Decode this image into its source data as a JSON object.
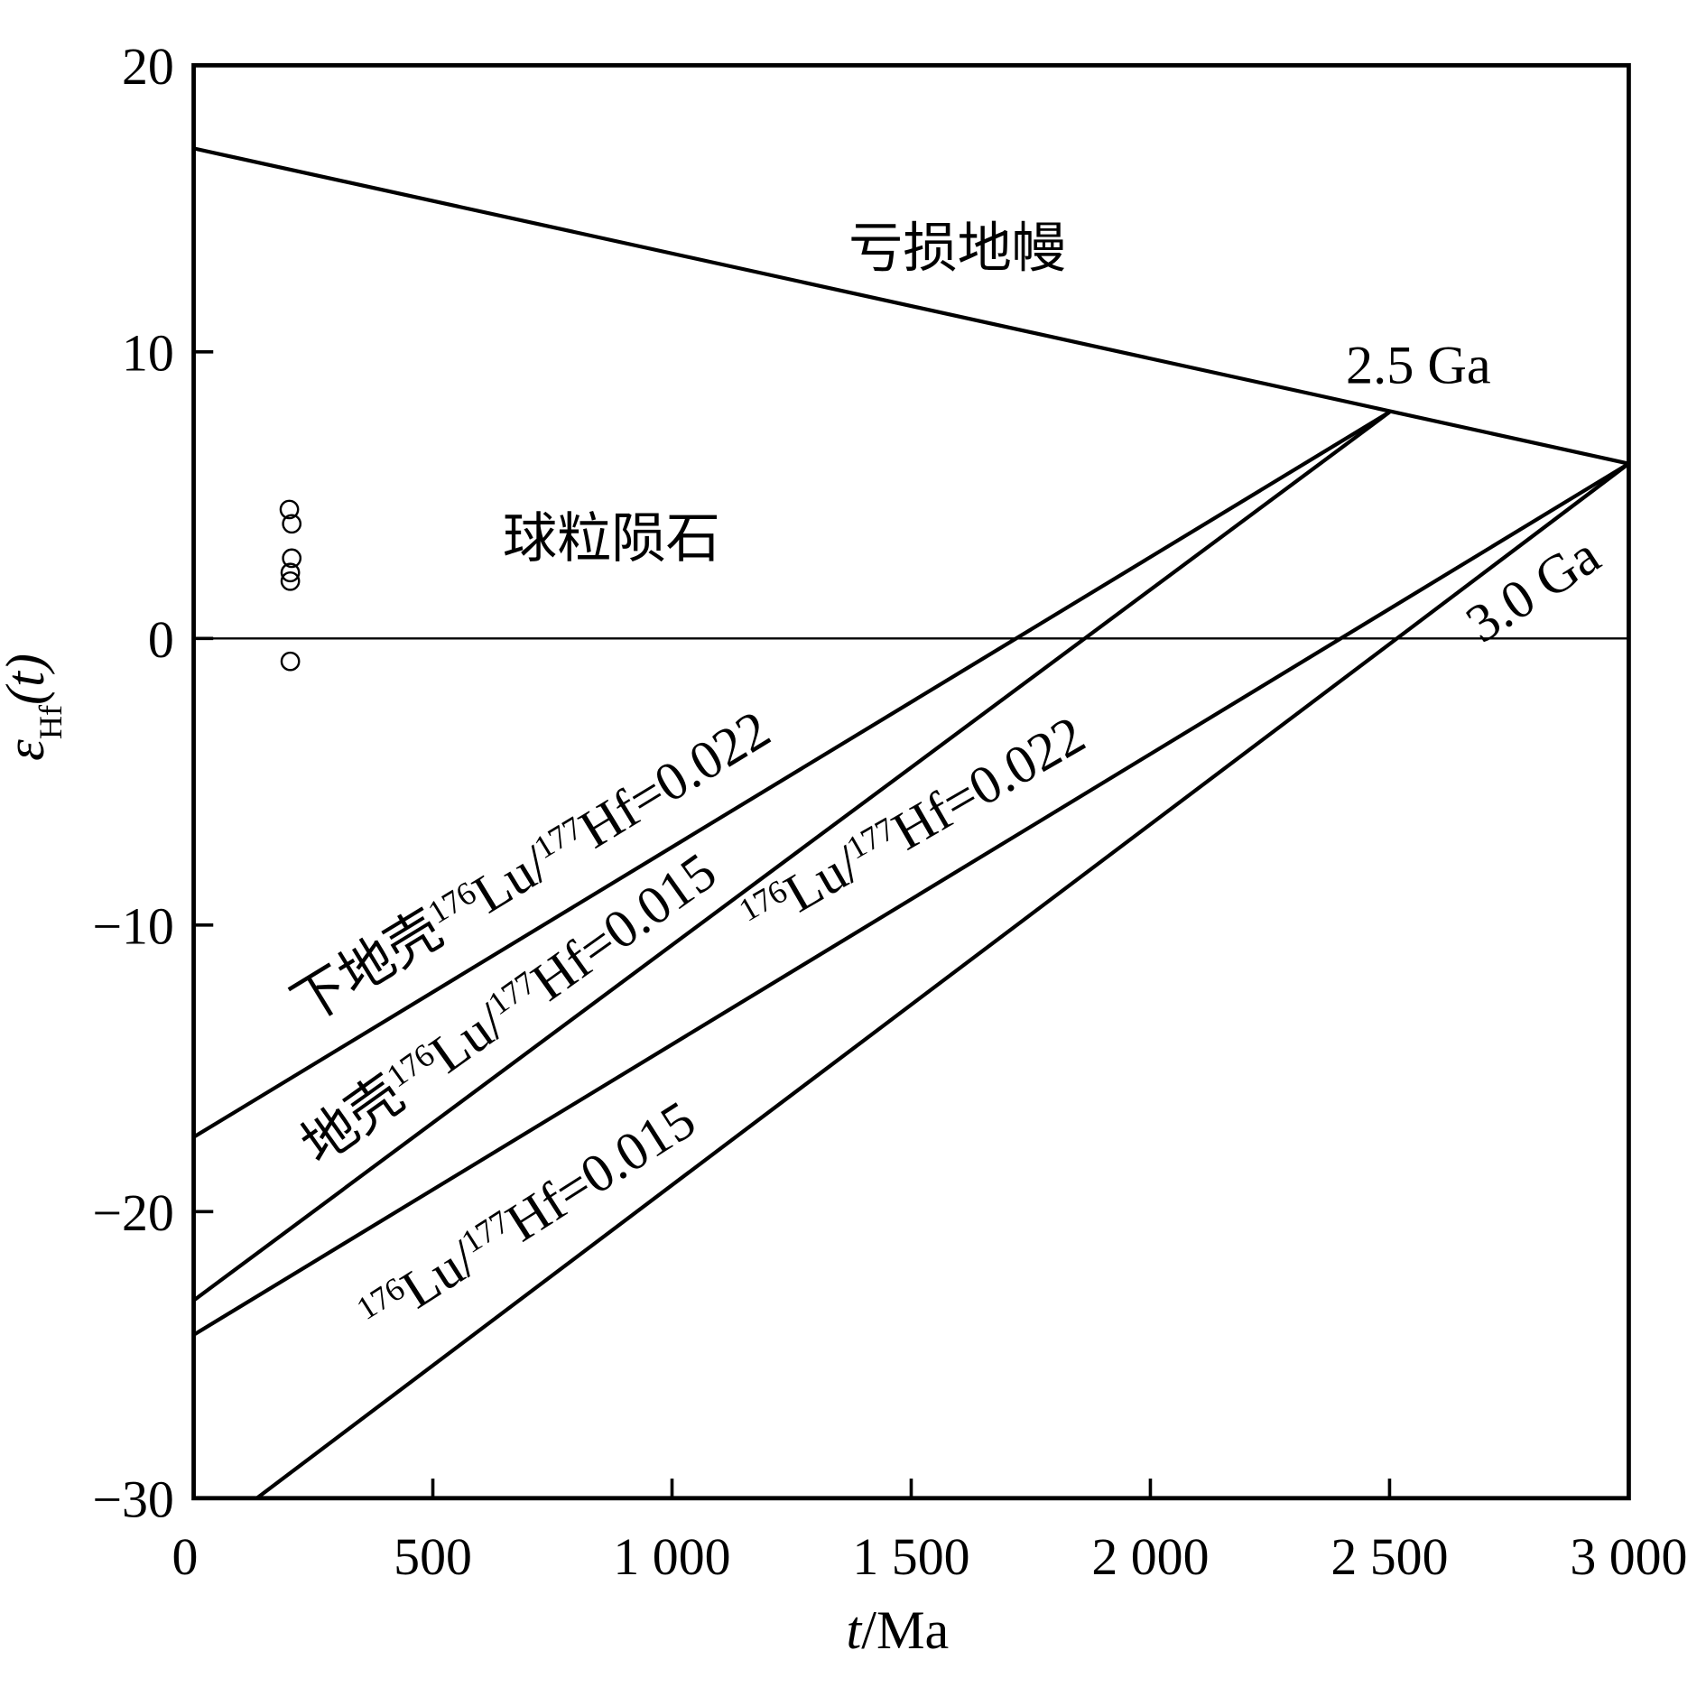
{
  "chart_data": {
    "type": "line",
    "xlabel": [
      "t",
      "/Ma"
    ],
    "ylabel": [
      "ε",
      "Hf",
      "(t)"
    ],
    "xlim": [
      0,
      3000
    ],
    "ylim": [
      -30,
      20
    ],
    "xticks": [
      0,
      500,
      {
        "value": 1000,
        "label": "1 000"
      },
      {
        "value": 1500,
        "label": "1 500"
      },
      {
        "value": 2000,
        "label": "2 000"
      },
      {
        "value": 2500,
        "label": "2 500"
      },
      {
        "value": 3000,
        "label": "3 000"
      }
    ],
    "yticks": [
      {
        "value": -30,
        "label": "−30"
      },
      {
        "value": -20,
        "label": "−20"
      },
      {
        "value": -10,
        "label": "−10"
      },
      0,
      10,
      20
    ],
    "hline": 0,
    "series": [
      {
        "color": "#000000",
        "x": [
          0,
          3000
        ],
        "values": [
          17.1,
          6.1
        ]
      },
      {
        "color": "#000000",
        "x": [
          0,
          2500
        ],
        "values": [
          -17.4,
          7.9
        ]
      },
      {
        "color": "#000000",
        "x": [
          0,
          2500
        ],
        "values": [
          -23.1,
          7.9
        ]
      },
      {
        "color": "#000000",
        "x": [
          0,
          3000
        ],
        "values": [
          -24.3,
          6.1
        ]
      },
      {
        "color": "#000000",
        "x": [
          132,
          3000
        ],
        "values": [
          -30,
          6.1
        ]
      },
      {
        "type": "scatter",
        "color": "#000000",
        "x": [
          200,
          205,
          205,
          202,
          202,
          202
        ],
        "values": [
          4.5,
          4.0,
          2.8,
          2.3,
          2.0,
          -0.8
        ]
      }
    ],
    "annotations": [
      {
        "parts": [
          "下地壳",
          "176",
          "Lu/",
          "177",
          "Hf=0.022"
        ]
      },
      {
        "parts": [
          "地壳",
          "176",
          "Lu/",
          "177",
          "Hf=0.015"
        ]
      },
      {
        "parts": [
          "",
          "176",
          "Lu/",
          "177",
          "Hf=0.022"
        ]
      },
      {
        "parts": [
          "",
          "176",
          "Lu/",
          "177",
          "Hf=0.015"
        ]
      },
      {
        "parts": [
          "3.0 Ga"
        ]
      },
      {
        "parts": [
          "2.5 Ga"
        ]
      },
      {
        "parts": [
          "亏损地幔"
        ]
      },
      {
        "parts": [
          "球粒陨石"
        ]
      }
    ]
  }
}
